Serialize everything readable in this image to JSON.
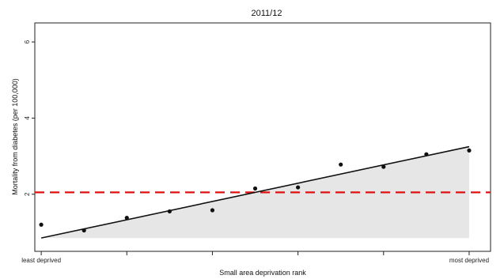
{
  "chart_data": {
    "type": "scatter",
    "title": "2011/12",
    "xlabel": "Small area deprivation rank",
    "ylabel": "Mortality from diabetes (per 100,000)",
    "x_tick_labels": [
      "least deprived",
      "",
      "",
      "",
      "",
      "",
      "",
      "",
      "",
      "",
      "most deprived"
    ],
    "x": [
      1,
      2,
      3,
      4,
      5,
      6,
      7,
      8,
      9,
      10,
      11
    ],
    "xlim": [
      0.85,
      11.5
    ],
    "ylim": [
      0.5,
      6.5
    ],
    "y_ticks": [
      2,
      4,
      6
    ],
    "grid": false,
    "legend": false,
    "series": [
      {
        "values": [
          1.2,
          1.05,
          1.38,
          1.55,
          1.58,
          2.15,
          2.18,
          2.78,
          2.72,
          3.05,
          3.15
        ]
      }
    ],
    "trend_line": {
      "x_start": 1,
      "y_start": 0.85,
      "x_end": 11,
      "y_end": 3.25,
      "shaded_to": 0.85
    },
    "reference_line": {
      "y": 2.05
    },
    "colors": {
      "points": "#111111",
      "trend": "#111111",
      "reference": "#e01010",
      "shade": "#e6e6e6"
    }
  }
}
